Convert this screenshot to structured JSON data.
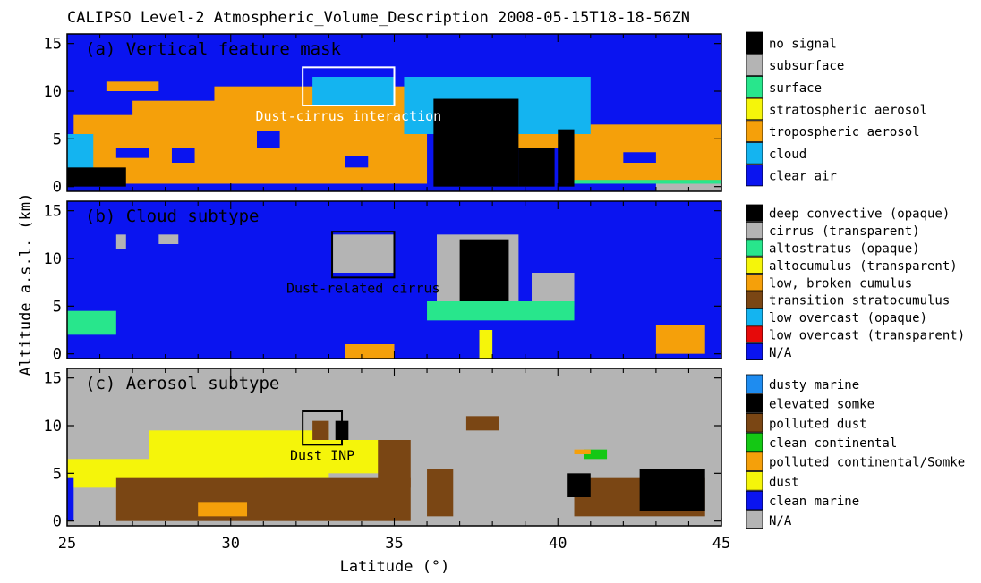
{
  "title": "CALIPSO Level-2 Atmospheric_Volume_Description 2008-05-15T18-18-56ZN",
  "xlabel": "Latitude (°)",
  "ylabel": "Altitude a.s.l. (km)",
  "x_ticks": [
    "25",
    "30",
    "35",
    "40",
    "45"
  ],
  "y_ticks": [
    "0",
    "5",
    "10",
    "15"
  ],
  "colors": {
    "clear_air": "#0a14f0",
    "tropo_aerosol": "#f5a00a",
    "cloud": "#14b4f0",
    "nosignal": "#000000",
    "gray": "#b4b4b4",
    "surface": "#28e68c",
    "yellow": "#f5f50a",
    "brown": "#7a4614",
    "green": "#14c814",
    "red": "#e60a0a",
    "dusty_marine": "#1e8cf0"
  },
  "panels": [
    {
      "title": "(a) Vertical feature mask",
      "background_color": "#0a14f0",
      "annotation": {
        "text": "Dust-cirrus interaction",
        "color": "#ffffff",
        "box": {
          "lat": [
            32.2,
            35.0
          ],
          "alt": [
            8.5,
            12.5
          ]
        }
      },
      "legend": [
        {
          "label": "no signal",
          "color": "#000000"
        },
        {
          "label": "subsurface",
          "color": "#b4b4b4"
        },
        {
          "label": "surface",
          "color": "#28e68c"
        },
        {
          "label": "stratospheric aerosol",
          "color": "#f5f50a"
        },
        {
          "label": "tropospheric aerosol",
          "color": "#f5a00a"
        },
        {
          "label": "cloud",
          "color": "#14b4f0"
        },
        {
          "label": "clear air",
          "color": "#0a14f0"
        }
      ]
    },
    {
      "title": "(b) Cloud subtype",
      "background_color": "#0a14f0",
      "annotation": {
        "text": "Dust-related cirrus",
        "color": "#000000",
        "box": {
          "lat": [
            33.1,
            35.0
          ],
          "alt": [
            8.0,
            12.8
          ]
        }
      },
      "legend": [
        {
          "label": "deep convective (opaque)",
          "color": "#000000"
        },
        {
          "label": "cirrus (transparent)",
          "color": "#b4b4b4"
        },
        {
          "label": "altostratus (opaque)",
          "color": "#28e68c"
        },
        {
          "label": "altocumulus (transparent)",
          "color": "#f5f50a"
        },
        {
          "label": "low, broken cumulus",
          "color": "#f5a00a"
        },
        {
          "label": "transition stratocumulus",
          "color": "#7a4614"
        },
        {
          "label": "low overcast (opaque)",
          "color": "#14b4f0"
        },
        {
          "label": "low overcast (transparent)",
          "color": "#e60a0a"
        },
        {
          "label": "N/A",
          "color": "#0a14f0"
        }
      ]
    },
    {
      "title": "(c) Aerosol subtype",
      "background_color": "#b4b4b4",
      "annotation": {
        "text": "Dust INP",
        "color": "#000000",
        "box": {
          "lat": [
            32.2,
            33.4
          ],
          "alt": [
            8.0,
            11.5
          ]
        }
      },
      "legend": [
        {
          "label": "dusty marine",
          "color": "#1e8cf0"
        },
        {
          "label": "elevated somke",
          "color": "#000000"
        },
        {
          "label": "polluted dust",
          "color": "#7a4614"
        },
        {
          "label": "clean continental",
          "color": "#14c814"
        },
        {
          "label": "polluted continental/Somke",
          "color": "#f5a00a"
        },
        {
          "label": "dust",
          "color": "#f5f50a"
        },
        {
          "label": "clean marine",
          "color": "#0a14f0"
        },
        {
          "label": "N/A",
          "color": "#b4b4b4"
        }
      ]
    }
  ],
  "chart_data": {
    "type": "heatmap",
    "title": "CALIPSO Level-2 Atmospheric_Volume_Description 2008-05-15T18-18-56ZN",
    "xlabel": "Latitude (°)",
    "ylabel": "Altitude a.s.l. (km)",
    "xlim": [
      25,
      45
    ],
    "ylim": [
      -0.5,
      16
    ],
    "grid": false,
    "legend_placement": "right",
    "panels": [
      {
        "name": "(a) Vertical feature mask",
        "regions": [
          {
            "category": "tropospheric aerosol",
            "lat": [
              25.2,
              36.0
            ],
            "alt": [
              0.3,
              7.5
            ]
          },
          {
            "category": "tropospheric aerosol",
            "lat": [
              27.0,
              35.0
            ],
            "alt": [
              4.0,
              9.0
            ]
          },
          {
            "category": "tropospheric aerosol",
            "lat": [
              29.5,
              35.5
            ],
            "alt": [
              6.0,
              10.5
            ]
          },
          {
            "category": "tropospheric aerosol",
            "lat": [
              26.2,
              27.8
            ],
            "alt": [
              10.0,
              11.0
            ]
          },
          {
            "category": "tropospheric aerosol",
            "lat": [
              40.5,
              45.0
            ],
            "alt": [
              0.5,
              6.5
            ]
          },
          {
            "category": "tropospheric aerosol",
            "lat": [
              38.5,
              40.5
            ],
            "alt": [
              4.0,
              6.5
            ]
          },
          {
            "category": "clear air",
            "lat": [
              30.8,
              31.5
            ],
            "alt": [
              4.0,
              5.8
            ]
          },
          {
            "category": "clear air",
            "lat": [
              28.2,
              28.9
            ],
            "alt": [
              2.5,
              4.0
            ]
          },
          {
            "category": "clear air",
            "lat": [
              42.0,
              43.0
            ],
            "alt": [
              2.5,
              3.6
            ]
          },
          {
            "category": "clear air",
            "lat": [
              33.5,
              34.2
            ],
            "alt": [
              2.0,
              3.2
            ]
          },
          {
            "category": "clear air",
            "lat": [
              26.5,
              27.5
            ],
            "alt": [
              3.0,
              4.0
            ]
          },
          {
            "category": "cloud",
            "lat": [
              32.5,
              35.0
            ],
            "alt": [
              8.5,
              11.5
            ]
          },
          {
            "category": "cloud",
            "lat": [
              35.3,
              41.0
            ],
            "alt": [
              5.5,
              11.5
            ]
          },
          {
            "category": "cloud",
            "lat": [
              25.0,
              25.8
            ],
            "alt": [
              1.0,
              5.5
            ]
          },
          {
            "category": "no signal",
            "lat": [
              36.2,
              38.8
            ],
            "alt": [
              0.0,
              9.2
            ]
          },
          {
            "category": "no signal",
            "lat": [
              25.0,
              26.8
            ],
            "alt": [
              0.0,
              2.0
            ]
          },
          {
            "category": "no signal",
            "lat": [
              38.8,
              39.9
            ],
            "alt": [
              0.0,
              4.0
            ]
          },
          {
            "category": "no signal",
            "lat": [
              40.0,
              40.5
            ],
            "alt": [
              0.0,
              6.0
            ]
          },
          {
            "category": "subsurface",
            "lat": [
              43.0,
              45.0
            ],
            "alt": [
              -0.5,
              0.6
            ]
          },
          {
            "category": "surface",
            "lat": [
              40.5,
              45.0
            ],
            "alt": [
              0.3,
              0.7
            ]
          }
        ]
      },
      {
        "name": "(b) Cloud subtype",
        "regions": [
          {
            "category": "cirrus (transparent)",
            "lat": [
              33.1,
              35.0
            ],
            "alt": [
              8.5,
              12.5
            ]
          },
          {
            "category": "cirrus (transparent)",
            "lat": [
              36.3,
              38.8
            ],
            "alt": [
              5.0,
              12.5
            ]
          },
          {
            "category": "cirrus (transparent)",
            "lat": [
              26.5,
              26.8
            ],
            "alt": [
              11.0,
              12.5
            ]
          },
          {
            "category": "cirrus (transparent)",
            "lat": [
              27.8,
              28.4
            ],
            "alt": [
              11.5,
              12.5
            ]
          },
          {
            "category": "cirrus (transparent)",
            "lat": [
              39.2,
              40.5
            ],
            "alt": [
              5.0,
              8.5
            ]
          },
          {
            "category": "deep convective (opaque)",
            "lat": [
              37.0,
              38.5
            ],
            "alt": [
              4.5,
              12.0
            ]
          },
          {
            "category": "altostratus (opaque)",
            "lat": [
              36.0,
              40.5
            ],
            "alt": [
              3.5,
              5.5
            ]
          },
          {
            "category": "altostratus (opaque)",
            "lat": [
              25.0,
              26.5
            ],
            "alt": [
              2.0,
              4.5
            ]
          },
          {
            "category": "altocumulus (transparent)",
            "lat": [
              37.6,
              38.0
            ],
            "alt": [
              -0.5,
              2.5
            ]
          },
          {
            "category": "low, broken cumulus",
            "lat": [
              33.5,
              35.0
            ],
            "alt": [
              -0.5,
              1.0
            ]
          },
          {
            "category": "low, broken cumulus",
            "lat": [
              43.0,
              44.5
            ],
            "alt": [
              0.0,
              3.0
            ]
          }
        ]
      },
      {
        "name": "(c) Aerosol subtype",
        "regions": [
          {
            "category": "dust",
            "lat": [
              25.0,
              31.0
            ],
            "alt": [
              3.5,
              6.5
            ]
          },
          {
            "category": "dust",
            "lat": [
              27.5,
              33.0
            ],
            "alt": [
              4.5,
              9.5
            ]
          },
          {
            "category": "dust",
            "lat": [
              32.0,
              35.0
            ],
            "alt": [
              5.0,
              8.5
            ]
          },
          {
            "category": "polluted dust",
            "lat": [
              26.5,
              35.5
            ],
            "alt": [
              0.0,
              4.5
            ]
          },
          {
            "category": "polluted dust",
            "lat": [
              32.5,
              33.0
            ],
            "alt": [
              8.5,
              10.5
            ]
          },
          {
            "category": "polluted dust",
            "lat": [
              34.5,
              35.5
            ],
            "alt": [
              3.5,
              8.5
            ]
          },
          {
            "category": "polluted dust",
            "lat": [
              36.0,
              36.8
            ],
            "alt": [
              0.5,
              5.5
            ]
          },
          {
            "category": "polluted dust",
            "lat": [
              40.5,
              44.5
            ],
            "alt": [
              0.5,
              4.5
            ]
          },
          {
            "category": "polluted dust",
            "lat": [
              37.2,
              38.2
            ],
            "alt": [
              9.5,
              11.0
            ]
          },
          {
            "category": "elevated somke",
            "lat": [
              33.2,
              33.6
            ],
            "alt": [
              8.5,
              10.5
            ]
          },
          {
            "category": "elevated somke",
            "lat": [
              40.3,
              41.0
            ],
            "alt": [
              2.5,
              5.0
            ]
          },
          {
            "category": "elevated somke",
            "lat": [
              42.5,
              44.5
            ],
            "alt": [
              1.0,
              5.5
            ]
          },
          {
            "category": "clean continental",
            "lat": [
              40.8,
              41.5
            ],
            "alt": [
              6.5,
              7.5
            ]
          },
          {
            "category": "polluted continental/Somke",
            "lat": [
              29.0,
              30.5
            ],
            "alt": [
              0.5,
              2.0
            ]
          },
          {
            "category": "polluted continental/Somke",
            "lat": [
              40.5,
              41.0
            ],
            "alt": [
              7.0,
              7.5
            ]
          },
          {
            "category": "clean marine",
            "lat": [
              25.0,
              25.2
            ],
            "alt": [
              0.0,
              4.5
            ]
          }
        ]
      }
    ]
  }
}
